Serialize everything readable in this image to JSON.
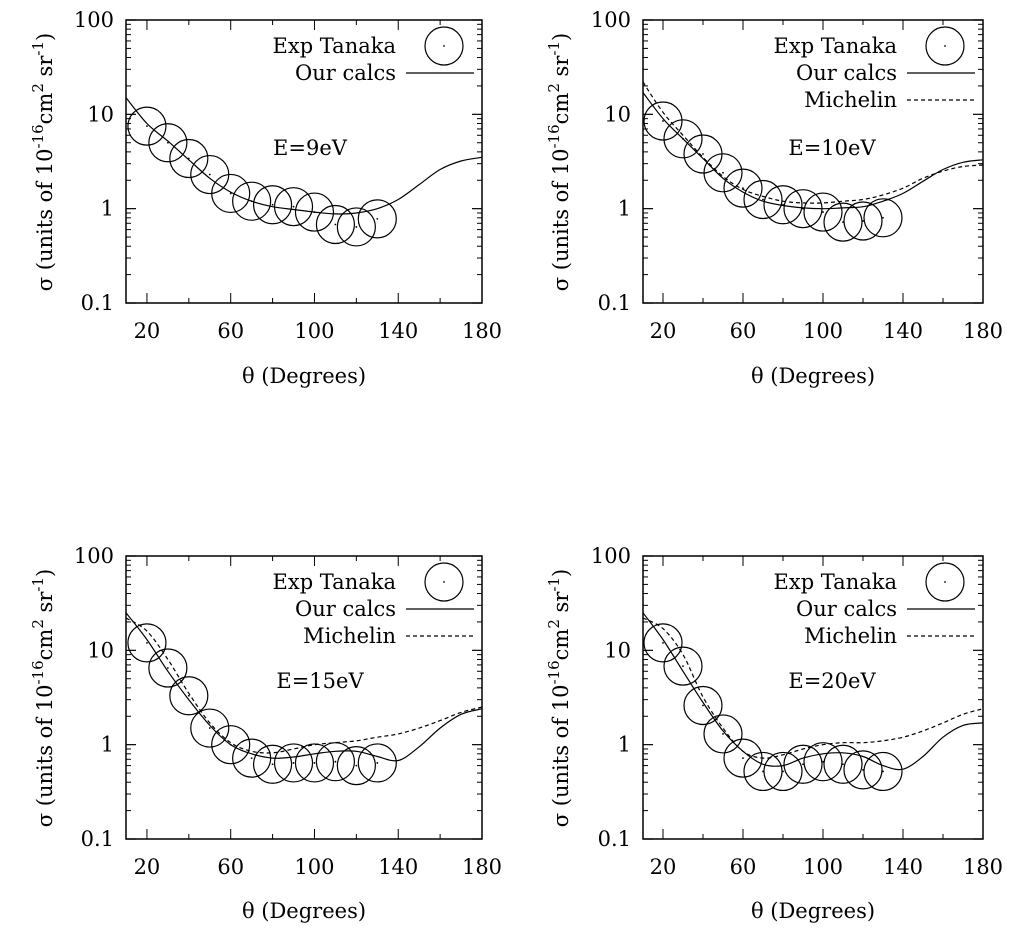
{
  "chart_data": [
    {
      "type": "line",
      "annotation": "E=9eV",
      "xlabel": "θ (Degrees)",
      "ylabel": "σ (units of 10",
      "ylabel_exp1": "-16",
      "ylabel_mid": "cm",
      "ylabel_exp2": "2",
      "ylabel_end": " sr",
      "ylabel_exp3": "-1",
      "ylabel_close": ")",
      "xlim": [
        10,
        180
      ],
      "ylim": [
        0.1,
        100
      ],
      "yscale": "log",
      "xticks": [
        20,
        60,
        100,
        140,
        180
      ],
      "yticks": [
        {
          "value": 0.1,
          "label": "0.1"
        },
        {
          "value": 1,
          "label": "1"
        },
        {
          "value": 10,
          "label": "10"
        },
        {
          "value": 100,
          "label": "100"
        }
      ],
      "legend_position": "top-right",
      "series": [
        {
          "name": "Exp Tanaka",
          "style": "circles",
          "x": [
            20,
            30,
            40,
            50,
            60,
            70,
            80,
            90,
            100,
            110,
            120,
            130
          ],
          "y": [
            7.5,
            5.0,
            3.4,
            2.3,
            1.45,
            1.2,
            1.1,
            1.05,
            0.92,
            0.68,
            0.64,
            0.78
          ]
        },
        {
          "name": "Our calcs",
          "style": "solid",
          "x": [
            10,
            20,
            30,
            40,
            50,
            60,
            70,
            80,
            90,
            100,
            110,
            120,
            130,
            140,
            150,
            160,
            170,
            180
          ],
          "y": [
            15,
            8.0,
            5.2,
            3.3,
            2.1,
            1.5,
            1.2,
            1.05,
            0.98,
            0.92,
            0.88,
            0.9,
            1.0,
            1.25,
            1.8,
            2.6,
            3.2,
            3.5
          ]
        }
      ]
    },
    {
      "type": "line",
      "annotation": "E=10eV",
      "xlabel": "θ (Degrees)",
      "ylabel": "σ (units of 10",
      "ylabel_exp1": "-16",
      "ylabel_mid": "cm",
      "ylabel_exp2": "2",
      "ylabel_end": " sr",
      "ylabel_exp3": "-1",
      "ylabel_close": ")",
      "xlim": [
        10,
        180
      ],
      "ylim": [
        0.1,
        100
      ],
      "yscale": "log",
      "xticks": [
        20,
        60,
        100,
        140,
        180
      ],
      "yticks": [
        {
          "value": 0.1,
          "label": "0.1"
        },
        {
          "value": 1,
          "label": "1"
        },
        {
          "value": 10,
          "label": "10"
        },
        {
          "value": 100,
          "label": "100"
        }
      ],
      "legend_position": "top-right",
      "series": [
        {
          "name": "Exp Tanaka",
          "style": "circles",
          "x": [
            20,
            30,
            40,
            50,
            60,
            70,
            80,
            90,
            100,
            110,
            120,
            130
          ],
          "y": [
            8.5,
            5.5,
            3.8,
            2.4,
            1.65,
            1.25,
            1.1,
            1.0,
            0.92,
            0.72,
            0.74,
            0.8
          ]
        },
        {
          "name": "Our calcs",
          "style": "solid",
          "x": [
            10,
            20,
            30,
            40,
            50,
            60,
            70,
            80,
            90,
            100,
            110,
            120,
            130,
            140,
            150,
            160,
            170,
            180
          ],
          "y": [
            17,
            9.0,
            5.5,
            3.4,
            2.1,
            1.5,
            1.2,
            1.08,
            1.02,
            1.0,
            1.02,
            1.05,
            1.2,
            1.45,
            1.95,
            2.6,
            3.1,
            3.3
          ]
        },
        {
          "name": "Michelin",
          "style": "dashed",
          "x": [
            10,
            20,
            30,
            40,
            50,
            60,
            70,
            80,
            90,
            100,
            110,
            120,
            130,
            140,
            150,
            160,
            170,
            180
          ],
          "y": [
            22,
            10.5,
            6.0,
            3.5,
            2.2,
            1.6,
            1.35,
            1.2,
            1.15,
            1.15,
            1.2,
            1.25,
            1.4,
            1.65,
            2.1,
            2.5,
            2.8,
            2.9
          ]
        }
      ]
    },
    {
      "type": "line",
      "annotation": "E=15eV",
      "xlabel": "θ (Degrees)",
      "ylabel": "σ (units of 10",
      "ylabel_exp1": "-16",
      "ylabel_mid": "cm",
      "ylabel_exp2": "2",
      "ylabel_end": " sr",
      "ylabel_exp3": "-1",
      "ylabel_close": ")",
      "xlim": [
        10,
        180
      ],
      "ylim": [
        0.1,
        100
      ],
      "yscale": "log",
      "xticks": [
        20,
        60,
        100,
        140,
        180
      ],
      "yticks": [
        {
          "value": 0.1,
          "label": "0.1"
        },
        {
          "value": 1,
          "label": "1"
        },
        {
          "value": 10,
          "label": "10"
        },
        {
          "value": 100,
          "label": "100"
        }
      ],
      "legend_position": "top-right",
      "series": [
        {
          "name": "Exp Tanaka",
          "style": "circles",
          "x": [
            20,
            30,
            40,
            50,
            60,
            70,
            80,
            90,
            100,
            110,
            120,
            130
          ],
          "y": [
            12,
            6.5,
            3.3,
            1.5,
            1.0,
            0.72,
            0.62,
            0.64,
            0.64,
            0.66,
            0.6,
            0.64
          ]
        },
        {
          "name": "Our calcs",
          "style": "solid",
          "x": [
            10,
            20,
            30,
            40,
            50,
            60,
            70,
            80,
            90,
            100,
            110,
            120,
            130,
            140,
            150,
            160,
            170,
            180
          ],
          "y": [
            25,
            13,
            6.0,
            3.0,
            1.6,
            1.0,
            0.8,
            0.72,
            0.74,
            0.8,
            0.85,
            0.85,
            0.75,
            0.68,
            0.95,
            1.5,
            2.1,
            2.4
          ]
        },
        {
          "name": "Michelin",
          "style": "dashed",
          "x": [
            10,
            20,
            30,
            40,
            50,
            60,
            70,
            80,
            90,
            100,
            110,
            120,
            130,
            140,
            150,
            160,
            170,
            180
          ],
          "y": [
            22,
            16,
            8.0,
            3.5,
            1.7,
            1.05,
            0.85,
            0.82,
            0.9,
            1.0,
            1.05,
            1.1,
            1.2,
            1.3,
            1.5,
            1.8,
            2.2,
            2.5
          ]
        }
      ]
    },
    {
      "type": "line",
      "annotation": "E=20eV",
      "xlabel": "θ (Degrees)",
      "ylabel": "σ (units of 10",
      "ylabel_exp1": "-16",
      "ylabel_mid": "cm",
      "ylabel_exp2": "2",
      "ylabel_end": " sr",
      "ylabel_exp3": "-1",
      "ylabel_close": ")",
      "xlim": [
        10,
        180
      ],
      "ylim": [
        0.1,
        100
      ],
      "yscale": "log",
      "xticks": [
        20,
        60,
        100,
        140,
        180
      ],
      "yticks": [
        {
          "value": 0.1,
          "label": "0.1"
        },
        {
          "value": 1,
          "label": "1"
        },
        {
          "value": 10,
          "label": "10"
        },
        {
          "value": 100,
          "label": "100"
        }
      ],
      "legend_position": "top-right",
      "series": [
        {
          "name": "Exp Tanaka",
          "style": "circles",
          "x": [
            20,
            30,
            40,
            50,
            60,
            70,
            80,
            90,
            100,
            110,
            120,
            130
          ],
          "y": [
            12,
            6.8,
            2.6,
            1.3,
            0.72,
            0.52,
            0.52,
            0.62,
            0.66,
            0.62,
            0.54,
            0.52
          ]
        },
        {
          "name": "Our calcs",
          "style": "solid",
          "x": [
            10,
            20,
            30,
            40,
            50,
            60,
            70,
            80,
            90,
            100,
            110,
            120,
            130,
            140,
            150,
            160,
            170,
            180
          ],
          "y": [
            25,
            13,
            6.0,
            2.8,
            1.4,
            0.85,
            0.62,
            0.6,
            0.72,
            0.8,
            0.82,
            0.75,
            0.6,
            0.55,
            0.75,
            1.2,
            1.6,
            1.7
          ]
        },
        {
          "name": "Michelin",
          "style": "dashed",
          "x": [
            10,
            20,
            30,
            40,
            50,
            60,
            70,
            80,
            90,
            100,
            110,
            120,
            130,
            140,
            150,
            160,
            170,
            180
          ],
          "y": [
            22,
            17,
            9.0,
            3.2,
            1.5,
            0.85,
            0.72,
            0.78,
            0.9,
            1.0,
            1.05,
            1.05,
            1.1,
            1.2,
            1.4,
            1.7,
            2.1,
            2.4
          ]
        }
      ]
    }
  ]
}
